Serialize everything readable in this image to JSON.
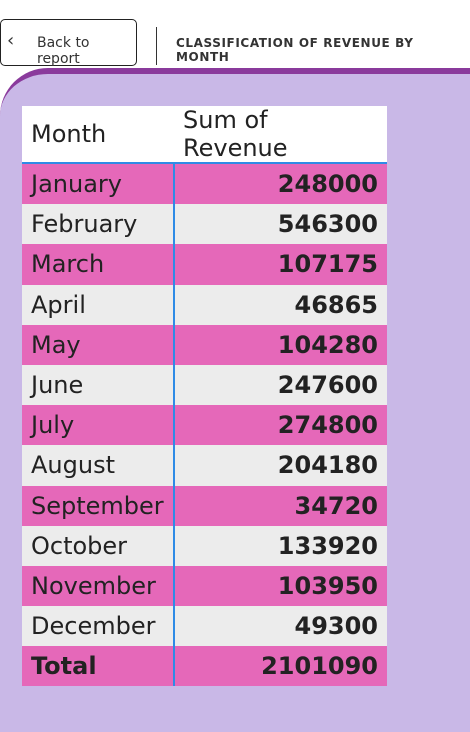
{
  "header": {
    "back_label": "Back to report",
    "title": "CLASSIFICATION OF REVENUE BY MONTH"
  },
  "table": {
    "columns": [
      "Month",
      "Sum of Revenue"
    ],
    "rows": [
      {
        "month": "January",
        "revenue": "248000"
      },
      {
        "month": "February",
        "revenue": "546300"
      },
      {
        "month": "March",
        "revenue": "107175"
      },
      {
        "month": "April",
        "revenue": "46865"
      },
      {
        "month": "May",
        "revenue": "104280"
      },
      {
        "month": "June",
        "revenue": "247600"
      },
      {
        "month": "July",
        "revenue": "274800"
      },
      {
        "month": "August",
        "revenue": "204180"
      },
      {
        "month": "September",
        "revenue": "34720"
      },
      {
        "month": "October",
        "revenue": "133920"
      },
      {
        "month": "November",
        "revenue": "103950"
      },
      {
        "month": "December",
        "revenue": "49300"
      }
    ],
    "total": {
      "label": "Total",
      "revenue": "2101090"
    }
  },
  "colors": {
    "accent_pink": "#e568b9",
    "row_gray": "#ececec",
    "canvas": "#c9b8e7",
    "canvas_border": "#8a3a9c",
    "grid_blue": "#2f8be6"
  }
}
